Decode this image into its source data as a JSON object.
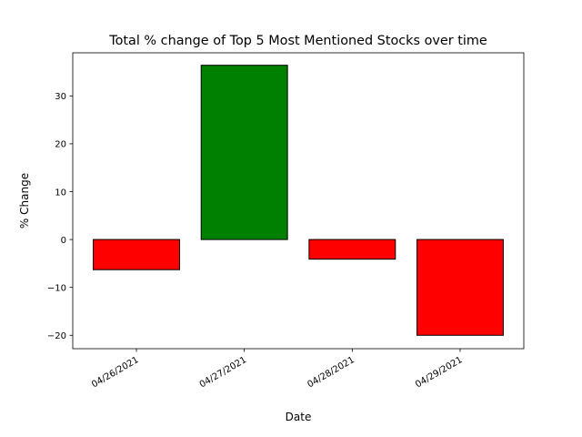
{
  "chart_data": {
    "type": "bar",
    "title": "Total % change of Top 5 Most Mentioned Stocks over time",
    "xlabel": "Date",
    "ylabel": "% Change",
    "categories": [
      "04/26/2021",
      "04/27/2021",
      "04/28/2021",
      "04/29/2021"
    ],
    "values": [
      -6.3,
      36.4,
      -4.1,
      -20.0
    ],
    "ylim": [
      -22.8,
      39.0
    ],
    "yticks": [
      -20,
      -10,
      0,
      10,
      20,
      30
    ],
    "ytick_labels": [
      "−20",
      "−10",
      "0",
      "10",
      "20",
      "30"
    ],
    "grid": false,
    "colors": {
      "positive": "#008000",
      "negative": "#ff0000",
      "edge": "#000000"
    }
  }
}
